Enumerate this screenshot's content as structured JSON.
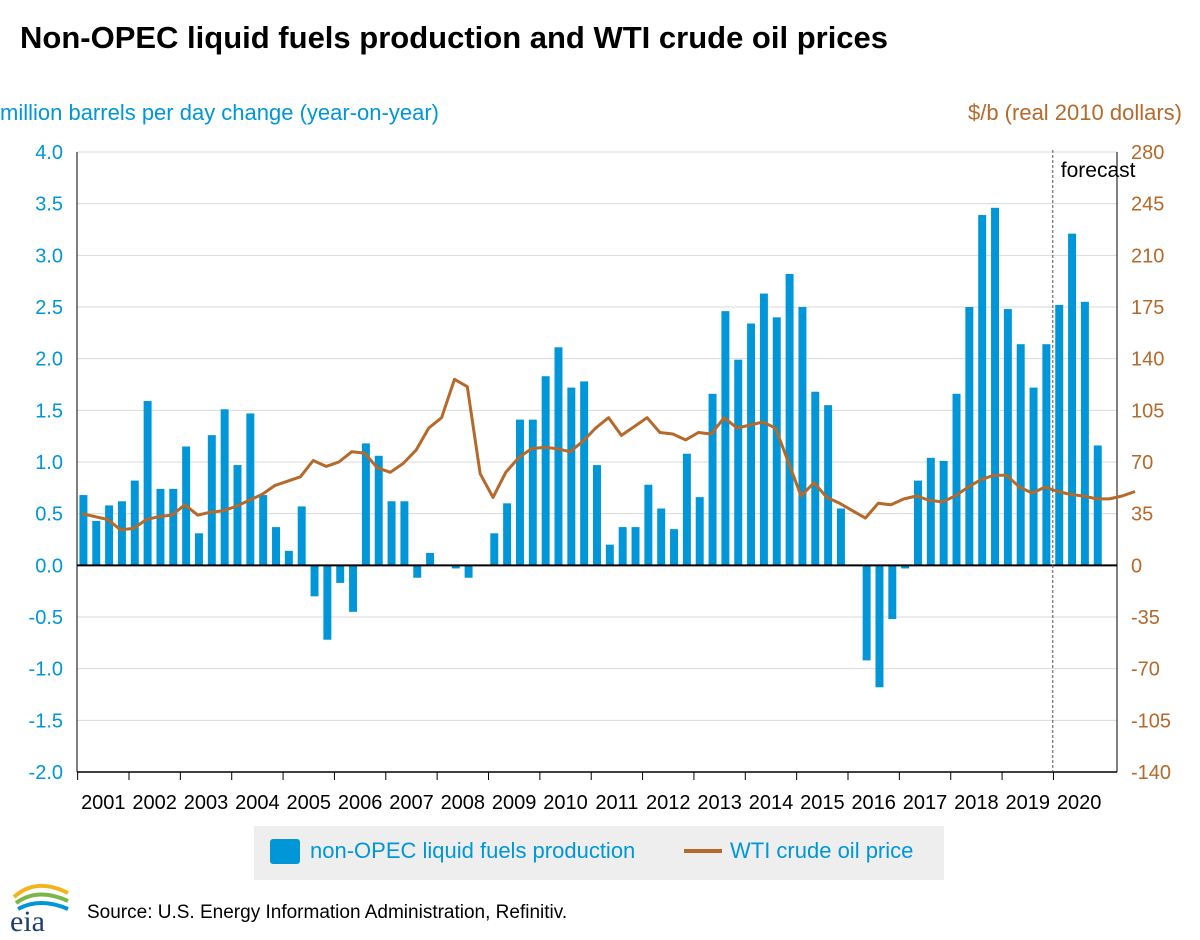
{
  "title": "Non-OPEC liquid fuels production and WTI crude oil prices",
  "source": "Source: U.S. Energy Information Administration, Refinitiv.",
  "logo_text": "eia",
  "colors": {
    "bars": "#0096d7",
    "line": "#b5692a",
    "left_axis": "#0096d7",
    "right_axis": "#b5692a"
  },
  "chart_data": {
    "type": "bar",
    "left_axis": {
      "label": "million barrels per day change (year-on-year)",
      "ylim": [
        -2.0,
        4.0
      ],
      "ticks": [
        "4.0",
        "3.5",
        "3.0",
        "2.5",
        "2.0",
        "1.5",
        "1.0",
        "0.5",
        "0.0",
        "-0.5",
        "-1.0",
        "-1.5",
        "-2.0"
      ]
    },
    "right_axis": {
      "label": "$/b (real 2010 dollars)",
      "ylim": [
        -140,
        280
      ],
      "ticks": [
        "280",
        "245",
        "210",
        "175",
        "140",
        "105",
        "70",
        "35",
        "0",
        "-35",
        "-70",
        "-105",
        "-140"
      ]
    },
    "x_labels": [
      "2001",
      "2002",
      "2003",
      "2004",
      "2005",
      "2006",
      "2007",
      "2008",
      "2009",
      "2010",
      "2011",
      "2012",
      "2013",
      "2014",
      "2015",
      "2016",
      "2017",
      "2018",
      "2019",
      "2020"
    ],
    "forecast_label": "forecast",
    "forecast_start_quarter": 76,
    "grid": true,
    "legend": [
      "non-OPEC liquid fuels production",
      "WTI crude oil price"
    ],
    "series": [
      {
        "name": "non-OPEC liquid fuels production",
        "type": "bar",
        "values": [
          0.68,
          0.43,
          0.58,
          0.62,
          0.82,
          1.59,
          0.74,
          0.74,
          1.15,
          0.31,
          1.26,
          1.51,
          0.97,
          1.47,
          0.68,
          0.37,
          0.14,
          0.57,
          -0.3,
          -0.72,
          -0.17,
          -0.45,
          1.18,
          1.06,
          0.62,
          0.62,
          -0.12,
          0.12,
          0.0,
          -0.03,
          -0.12,
          0.0,
          0.31,
          0.6,
          1.41,
          1.41,
          1.83,
          2.11,
          1.72,
          1.78,
          0.97,
          0.2,
          0.37,
          0.37,
          0.78,
          0.55,
          0.35,
          1.08,
          0.66,
          1.66,
          2.46,
          1.99,
          2.34,
          2.63,
          2.4,
          2.82,
          2.5,
          1.68,
          1.55,
          0.55,
          0.0,
          -0.92,
          -1.18,
          -0.52,
          -0.03,
          0.82,
          1.04,
          1.01,
          1.66,
          2.5,
          3.39,
          3.46,
          2.48,
          2.14,
          1.72,
          2.14,
          2.52,
          3.21,
          2.55,
          1.16
        ]
      },
      {
        "name": "WTI crude oil price",
        "type": "line",
        "values": [
          35,
          33,
          31,
          24,
          25,
          31,
          33,
          34,
          41,
          34,
          36,
          37,
          40,
          44,
          48,
          54,
          57,
          60,
          71,
          67,
          70,
          77,
          76,
          66,
          63,
          69,
          78,
          93,
          100,
          126,
          121,
          62,
          46,
          63,
          73,
          79,
          80,
          79,
          77,
          84,
          93,
          100,
          88,
          94,
          100,
          90,
          89,
          85,
          90,
          89,
          100,
          93,
          95,
          97,
          93,
          70,
          47,
          56,
          46,
          42,
          37,
          32,
          42,
          41,
          45,
          47,
          44,
          43,
          47,
          53,
          58,
          61,
          61,
          53,
          49,
          53,
          50,
          48,
          47,
          45,
          45,
          47,
          50
        ]
      }
    ]
  }
}
